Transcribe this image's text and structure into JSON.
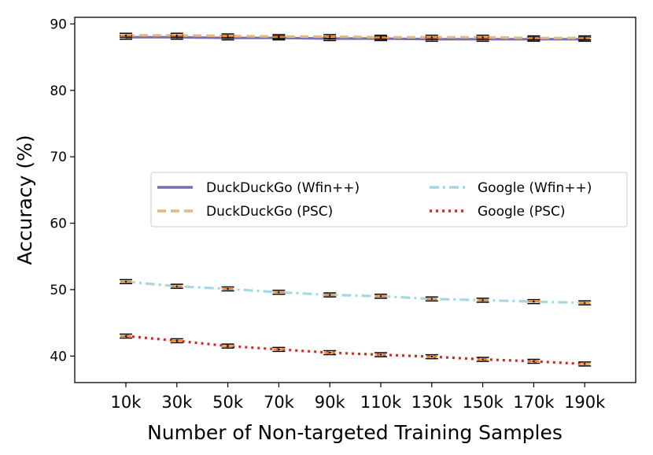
{
  "chart_data": {
    "type": "line",
    "xlabel": "Number of Non-targeted Training Samples",
    "ylabel": "Accuracy (%)",
    "categories": [
      "10k",
      "30k",
      "50k",
      "70k",
      "90k",
      "110k",
      "130k",
      "150k",
      "170k",
      "190k"
    ],
    "ylim": [
      36,
      91
    ],
    "yticks": [
      40,
      50,
      60,
      70,
      80,
      90
    ],
    "grid": false,
    "legend_position": "center-right",
    "series": [
      {
        "name": "DuckDuckGo (Wfin++)",
        "color": "#7570b3",
        "style": "solid",
        "values": [
          88.0,
          88.0,
          87.9,
          87.9,
          87.8,
          87.8,
          87.7,
          87.7,
          87.7,
          87.7
        ]
      },
      {
        "name": "DuckDuckGo (PSC)",
        "color": "#e6b87c",
        "style": "dashed",
        "values": [
          88.3,
          88.3,
          88.2,
          88.1,
          88.1,
          88.0,
          88.0,
          88.0,
          87.9,
          87.9
        ]
      },
      {
        "name": "Google (Wfin++)",
        "color": "#a6d8e3",
        "style": "dashdot",
        "values": [
          51.2,
          50.5,
          50.1,
          49.6,
          49.2,
          49.0,
          48.6,
          48.4,
          48.2,
          48.0
        ]
      },
      {
        "name": "Google (PSC)",
        "color": "#d62728",
        "style": "dotted",
        "values": [
          43.0,
          42.3,
          41.5,
          41.0,
          40.5,
          40.2,
          39.9,
          39.5,
          39.2,
          38.8
        ]
      }
    ]
  }
}
